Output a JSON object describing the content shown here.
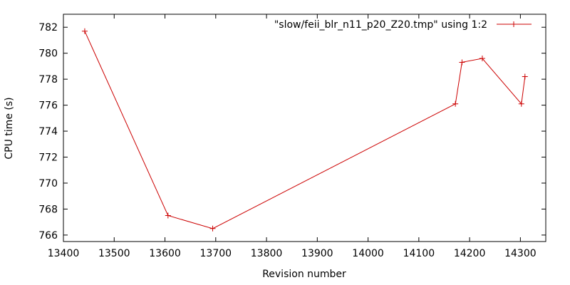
{
  "chart_data": {
    "type": "line",
    "xlabel": "Revision number",
    "ylabel": "CPU time (s)",
    "xlim": [
      13400,
      14350
    ],
    "ylim": [
      765.5,
      783
    ],
    "xticks": [
      13400,
      13500,
      13600,
      13700,
      13800,
      13900,
      14000,
      14100,
      14200,
      14300
    ],
    "yticks": [
      766,
      768,
      770,
      772,
      774,
      776,
      778,
      780,
      782
    ],
    "grid": false,
    "legend_position": "top-right",
    "series": [
      {
        "name": "\"slow/feii_blr_n11_p20_Z20.tmp\" using 1:2",
        "color": "#cc0000",
        "marker": "plus",
        "points": [
          {
            "x": 13442,
            "y": 781.7
          },
          {
            "x": 13606,
            "y": 767.5
          },
          {
            "x": 13694,
            "y": 766.5
          },
          {
            "x": 14172,
            "y": 776.1
          },
          {
            "x": 14185,
            "y": 779.3
          },
          {
            "x": 14225,
            "y": 779.6
          },
          {
            "x": 14302,
            "y": 776.1
          },
          {
            "x": 14309,
            "y": 778.2
          }
        ]
      }
    ]
  }
}
